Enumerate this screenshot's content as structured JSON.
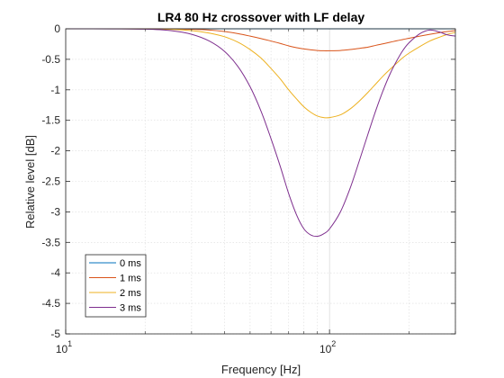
{
  "chart_data": {
    "type": "line",
    "title": "LR4 80 Hz crossover with LF delay",
    "xlabel": "Frequency [Hz]",
    "ylabel": "Relative level [dB]",
    "x_scale": "log",
    "xlim": [
      10,
      300
    ],
    "ylim": [
      -5,
      0
    ],
    "x_ticks": [
      {
        "value": 10,
        "base": "10",
        "exp": "1"
      },
      {
        "value": 100,
        "base": "10",
        "exp": "2"
      }
    ],
    "y_ticks": [
      {
        "value": 0,
        "label": "0"
      },
      {
        "value": -0.5,
        "label": "-0.5"
      },
      {
        "value": -1,
        "label": "-1"
      },
      {
        "value": -1.5,
        "label": "-1.5"
      },
      {
        "value": -2,
        "label": "-2"
      },
      {
        "value": -2.5,
        "label": "-2.5"
      },
      {
        "value": -3,
        "label": "-3"
      },
      {
        "value": -3.5,
        "label": "-3.5"
      },
      {
        "value": -4,
        "label": "-4"
      },
      {
        "value": -4.5,
        "label": "-4.5"
      },
      {
        "value": -5,
        "label": "-5"
      }
    ],
    "grid": true,
    "legend_position": "bottom-left",
    "x": [
      10,
      15,
      20,
      25,
      30,
      35,
      40,
      45,
      50,
      55,
      60,
      65,
      70,
      75,
      80,
      85,
      90,
      95,
      100,
      110,
      120,
      130,
      140,
      150,
      160,
      170,
      180,
      190,
      200,
      220,
      240,
      260,
      280,
      300
    ],
    "series": [
      {
        "name": "0 ms",
        "color": "#0072BD",
        "values": [
          0,
          0,
          0,
          0,
          0,
          0,
          0,
          0,
          0,
          0,
          0,
          0,
          0,
          0,
          0,
          0,
          0,
          0,
          0,
          0,
          0,
          0,
          0,
          0,
          0,
          0,
          0,
          0,
          0,
          0,
          0,
          0,
          0,
          0
        ]
      },
      {
        "name": "1 ms",
        "color": "#D95319",
        "values": [
          0,
          0,
          0,
          -0.002,
          -0.008,
          -0.02,
          -0.045,
          -0.08,
          -0.12,
          -0.16,
          -0.2,
          -0.24,
          -0.28,
          -0.31,
          -0.33,
          -0.345,
          -0.355,
          -0.36,
          -0.36,
          -0.355,
          -0.34,
          -0.32,
          -0.3,
          -0.27,
          -0.245,
          -0.22,
          -0.195,
          -0.175,
          -0.155,
          -0.12,
          -0.09,
          -0.065,
          -0.045,
          -0.03
        ]
      },
      {
        "name": "2 ms",
        "color": "#EDB120",
        "values": [
          0,
          0,
          -0.002,
          -0.01,
          -0.03,
          -0.07,
          -0.13,
          -0.22,
          -0.34,
          -0.48,
          -0.65,
          -0.82,
          -1.0,
          -1.15,
          -1.28,
          -1.37,
          -1.43,
          -1.455,
          -1.455,
          -1.41,
          -1.31,
          -1.18,
          -1.04,
          -0.9,
          -0.77,
          -0.66,
          -0.56,
          -0.47,
          -0.4,
          -0.29,
          -0.2,
          -0.14,
          -0.09,
          -0.06
        ]
      },
      {
        "name": "3 ms",
        "color": "#7E2F8E",
        "values": [
          0,
          -0.001,
          -0.006,
          -0.03,
          -0.09,
          -0.2,
          -0.37,
          -0.62,
          -0.95,
          -1.35,
          -1.8,
          -2.25,
          -2.7,
          -3.05,
          -3.28,
          -3.38,
          -3.4,
          -3.36,
          -3.28,
          -3.0,
          -2.6,
          -2.15,
          -1.72,
          -1.33,
          -1.0,
          -0.73,
          -0.52,
          -0.35,
          -0.23,
          -0.08,
          -0.02,
          -0.05,
          -0.1,
          -0.12
        ]
      }
    ]
  }
}
